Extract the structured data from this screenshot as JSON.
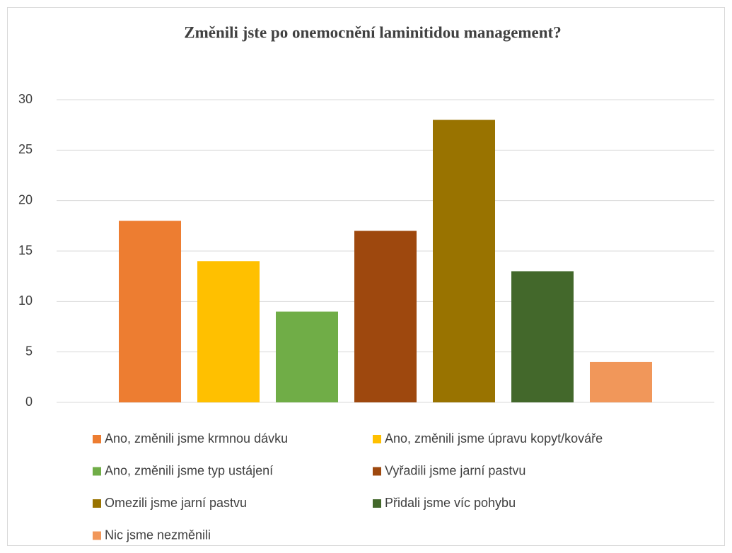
{
  "chart_data": {
    "type": "bar",
    "title": "Změnili jste po onemocnění laminitidou management?",
    "series": [
      {
        "name": "Ano, změnili jsme krmnou dávku",
        "color": "#ED7D31",
        "values": [
          18
        ]
      },
      {
        "name": "Ano, změnili jsme úpravu kopyt/kováře",
        "color": "#FFC000",
        "values": [
          14
        ]
      },
      {
        "name": "Ano, změnili jsme typ ustájení",
        "color": "#70AD47",
        "values": [
          9
        ]
      },
      {
        "name": "Vyřadili jsme jarní pastvu",
        "color": "#9E480E",
        "values": [
          17
        ]
      },
      {
        "name": "Omezili jsme jarní pastvu",
        "color": "#997300",
        "values": [
          28
        ]
      },
      {
        "name": "Přidali jsme víc pohybu",
        "color": "#43682B",
        "values": [
          13
        ]
      },
      {
        "name": "Nic jsme nezměnili",
        "color": "#F1975A",
        "values": [
          4
        ]
      }
    ],
    "ylim": [
      0,
      30
    ],
    "yticks": [
      0,
      5,
      10,
      15,
      20,
      25,
      30
    ],
    "grid": true,
    "legend": "bottom"
  }
}
